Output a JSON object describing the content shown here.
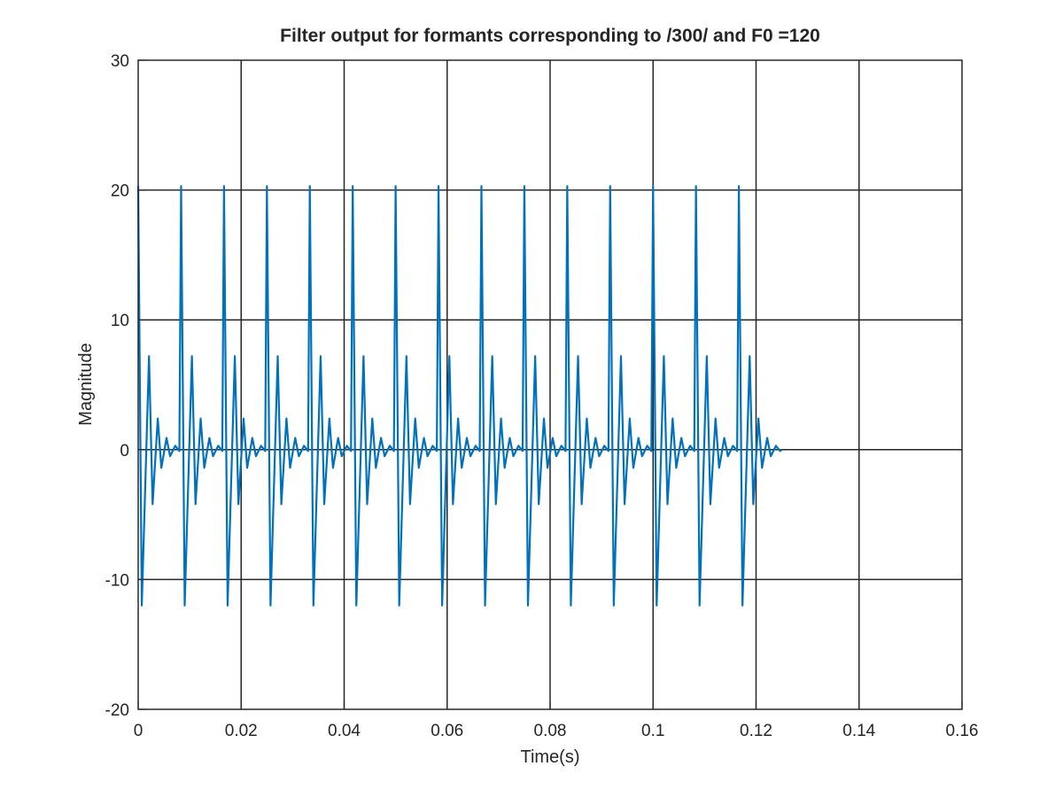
{
  "chart_data": {
    "type": "line",
    "title": "Filter output for formants corresponding to /300/ and F0 =120",
    "xlabel": "Time(s)",
    "ylabel": "Magnitude",
    "xlim": [
      0,
      0.16
    ],
    "ylim": [
      -20,
      30
    ],
    "xticks": [
      0,
      0.02,
      0.04,
      0.06,
      0.08,
      0.1,
      0.12,
      0.14,
      0.16
    ],
    "yticks": [
      -20,
      -10,
      0,
      10,
      20,
      30
    ],
    "xtick_labels": [
      "0",
      "0.02",
      "0.04",
      "0.06",
      "0.08",
      "0.1",
      "0.12",
      "0.14",
      "0.16"
    ],
    "ytick_labels": [
      "-20",
      "-10",
      "0",
      "10",
      "20",
      "30"
    ],
    "grid": true,
    "line_color": "#0072BD",
    "series": [
      {
        "signal": "periodic damped oscillation (impulse train excitation)",
        "period_s": 0.008333,
        "pulse_count": 15,
        "signal_end_s": 0.125,
        "peak_value": 20.3,
        "trough_value": -12,
        "pulse_envelope": [
          [
            0.0,
            20.3
          ],
          [
            0.0007,
            -12.0
          ],
          [
            0.0021,
            7.2
          ],
          [
            0.0028,
            -4.2
          ],
          [
            0.0038,
            2.4
          ],
          [
            0.0045,
            -1.4
          ],
          [
            0.0055,
            0.9
          ],
          [
            0.0062,
            -0.5
          ],
          [
            0.0072,
            0.3
          ],
          [
            0.008,
            -0.1
          ]
        ]
      }
    ]
  }
}
